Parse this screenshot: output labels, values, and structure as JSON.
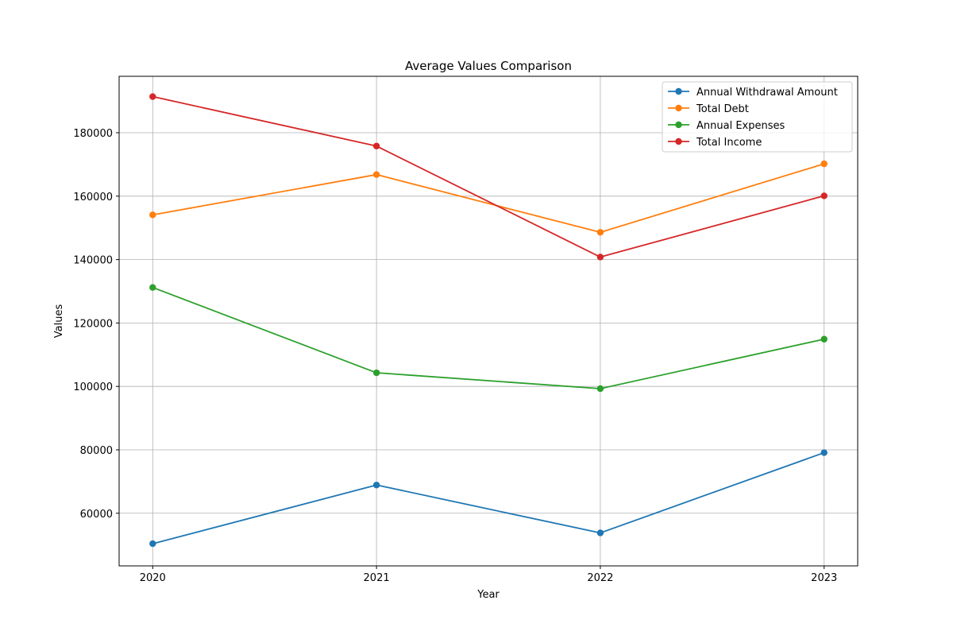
{
  "chart_data": {
    "type": "line",
    "title": "Average Values Comparison",
    "xlabel": "Year",
    "ylabel": "Values",
    "categories": [
      "2020",
      "2021",
      "2022",
      "2023"
    ],
    "x": [
      2020,
      2021,
      2022,
      2023
    ],
    "xlim": [
      2019.85,
      2023.15
    ],
    "ylim": [
      43400,
      197800
    ],
    "yticks": [
      60000,
      80000,
      100000,
      120000,
      140000,
      160000,
      180000
    ],
    "ytick_labels": [
      "60000",
      "80000",
      "100000",
      "120000",
      "140000",
      "160000",
      "180000"
    ],
    "grid": true,
    "legend": "top-right",
    "markers": "circle",
    "series": [
      {
        "name": "Annual Withdrawal Amount",
        "color": "#1f77b4",
        "values": [
          50400,
          68900,
          53800,
          79100
        ]
      },
      {
        "name": "Total Debt",
        "color": "#ff7f0e",
        "values": [
          154100,
          166800,
          148600,
          170200
        ]
      },
      {
        "name": "Annual Expenses",
        "color": "#2ca02c",
        "values": [
          131200,
          104300,
          99300,
          114900
        ]
      },
      {
        "name": "Total Income",
        "color": "#d62728",
        "values": [
          191400,
          175800,
          140800,
          160100
        ]
      }
    ]
  }
}
